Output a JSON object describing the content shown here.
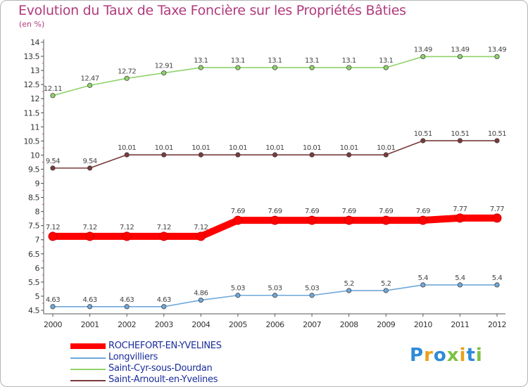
{
  "chart_data": {
    "type": "line",
    "title": "Evolution du Taux de Taxe Foncière sur les Propriétés Bâties",
    "ylabel": "(en %)",
    "xlabel": "",
    "x": [
      "2000",
      "2001",
      "2002",
      "2003",
      "2004",
      "2005",
      "2006",
      "2007",
      "2008",
      "2009",
      "2010",
      "2011",
      "2012"
    ],
    "ylim": [
      4.5,
      14
    ],
    "yticks": [
      "4.5",
      "5",
      "5.5",
      "6",
      "6.5",
      "7",
      "7.5",
      "8",
      "8.5",
      "9",
      "9.5",
      "10",
      "10.5",
      "11",
      "11.5",
      "12",
      "12.5",
      "13",
      "13.5",
      "14"
    ],
    "grid": false,
    "legend": "bottom-left",
    "series": [
      {
        "name": "ROCHEFORT-EN-YVELINES",
        "color": "#ff0000",
        "values": [
          7.12,
          7.12,
          7.12,
          7.12,
          7.12,
          7.69,
          7.69,
          7.69,
          7.69,
          7.69,
          7.69,
          7.77,
          7.77
        ],
        "labels": [
          "7.12",
          "7.12",
          "7.12",
          "7.12",
          "7.12",
          "7.69",
          "7.69",
          "7.69",
          "7.69",
          "7.69",
          "7.69",
          "7.77",
          "7.77"
        ]
      },
      {
        "name": "Longvilliers",
        "color": "#6fa8d8",
        "values": [
          4.63,
          4.63,
          4.63,
          4.63,
          4.86,
          5.03,
          5.03,
          5.03,
          5.2,
          5.2,
          5.4,
          5.4,
          5.4
        ],
        "labels": [
          "4.63",
          "4.63",
          "4.63",
          "4.63",
          "4.86",
          "5.03",
          "5.03",
          "5.03",
          "5.2",
          "5.2",
          "5.4",
          "5.4",
          "5.4"
        ]
      },
      {
        "name": "Saint-Cyr-sous-Dourdan",
        "color": "#8fd36a",
        "values": [
          12.11,
          12.47,
          12.72,
          12.91,
          13.1,
          13.1,
          13.1,
          13.1,
          13.1,
          13.1,
          13.49,
          13.49,
          13.49
        ],
        "labels": [
          "12.11",
          "12.47",
          "12.72",
          "12.91",
          "13.1",
          "13.1",
          "13.1",
          "13.1",
          "13.1",
          "13.1",
          "13.49",
          "13.49",
          "13.49"
        ]
      },
      {
        "name": "Saint-Arnoult-en-Yvelines",
        "color": "#7a3a3a",
        "values": [
          9.54,
          9.54,
          10.01,
          10.01,
          10.01,
          10.01,
          10.01,
          10.01,
          10.01,
          10.01,
          10.51,
          10.51,
          10.51
        ],
        "labels": [
          "9.54",
          "9.54",
          "10.01",
          "10.01",
          "10.01",
          "10.01",
          "10.01",
          "10.01",
          "10.01",
          "10.01",
          "10.51",
          "10.51",
          "10.51"
        ]
      }
    ]
  },
  "logo": {
    "letters": [
      "P",
      "r",
      "o",
      "x",
      "i",
      "t",
      "i"
    ],
    "colors": [
      "#2e8bd6",
      "#e8a21a",
      "#2e8bd6",
      "#7cc242",
      "#e8a21a",
      "#2e8bd6",
      "#7cc242"
    ]
  }
}
